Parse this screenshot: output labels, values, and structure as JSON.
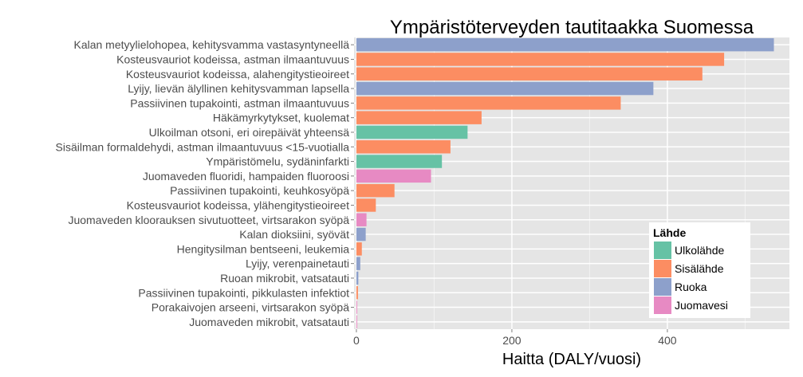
{
  "chart_data": {
    "type": "bar",
    "orientation": "horizontal",
    "title": "Ympäristöterveyden tautitaakka Suomessa",
    "xlabel": "Haitta (DALY/vuosi)",
    "ylabel": "",
    "xlim": [
      -3,
      557
    ],
    "xticks": [
      0,
      200,
      400
    ],
    "grid": true,
    "legend": {
      "title": "Lähde",
      "position": "bottom-right",
      "entries": [
        {
          "name": "Ulkolähde",
          "color": "#66c2a5"
        },
        {
          "name": "Sisälähde",
          "color": "#fc8d62"
        },
        {
          "name": "Ruoka",
          "color": "#8da0cb"
        },
        {
          "name": "Juomavesi",
          "color": "#e78ac3"
        }
      ]
    },
    "bars": [
      {
        "label": "Kalan metyylielohopea, kehitysvamma vastasyntyneellä",
        "value": 537,
        "source": "Ruoka"
      },
      {
        "label": "Kosteusvauriot kodeissa, astman ilmaantuvuus",
        "value": 473,
        "source": "Sisälähde"
      },
      {
        "label": "Kosteusvauriot kodeissa, alahengitystieoireet",
        "value": 445,
        "source": "Sisälähde"
      },
      {
        "label": "Lyijy, lievän älyllinen kehitysvamman lapsella",
        "value": 382,
        "source": "Ruoka"
      },
      {
        "label": "Passiivinen tupakointi, astman ilmaantuvuus",
        "value": 340,
        "source": "Sisälähde"
      },
      {
        "label": "Häkämyrkytykset, kuolemat",
        "value": 161,
        "source": "Sisälähde"
      },
      {
        "label": "Ulkoilman otsoni, eri oirepäivät yhteensä",
        "value": 143,
        "source": "Ulkolähde"
      },
      {
        "label": "Sisäilman formaldehydi, astman ilmaantuvuus <15-vuotialla",
        "value": 121,
        "source": "Sisälähde"
      },
      {
        "label": "Ympäristömelu, sydäninfarkti",
        "value": 110,
        "source": "Ulkolähde"
      },
      {
        "label": "Juomaveden fluoridi, hampaiden fluoroosi",
        "value": 96,
        "source": "Juomavesi"
      },
      {
        "label": "Passiivinen tupakointi, keuhkosyöpä",
        "value": 49,
        "source": "Sisälähde"
      },
      {
        "label": "Kosteusvauriot kodeissa, ylähengitystieoireet",
        "value": 25,
        "source": "Sisälähde"
      },
      {
        "label": "Juomaveden kloorauksen sivutuotteet, virtsarakon syöpä",
        "value": 13,
        "source": "Juomavesi"
      },
      {
        "label": "Kalan dioksiini, syövät",
        "value": 12,
        "source": "Ruoka"
      },
      {
        "label": "Hengitysilman bentseeni, leukemia",
        "value": 7,
        "source": "Sisälähde"
      },
      {
        "label": "Lyijy, verenpainetauti",
        "value": 5,
        "source": "Ruoka"
      },
      {
        "label": "Ruoan mikrobit, vatsatauti",
        "value": 2.5,
        "source": "Ruoka"
      },
      {
        "label": "Passiivinen tupakointi, pikkulasten infektiot",
        "value": 2,
        "source": "Sisälähde"
      },
      {
        "label": "Porakaivojen arseeni, virtsarakon syöpä",
        "value": 1,
        "source": "Juomavesi"
      },
      {
        "label": "Juomaveden mikrobit, vatsatauti",
        "value": 0.8,
        "source": "Juomavesi"
      }
    ]
  }
}
